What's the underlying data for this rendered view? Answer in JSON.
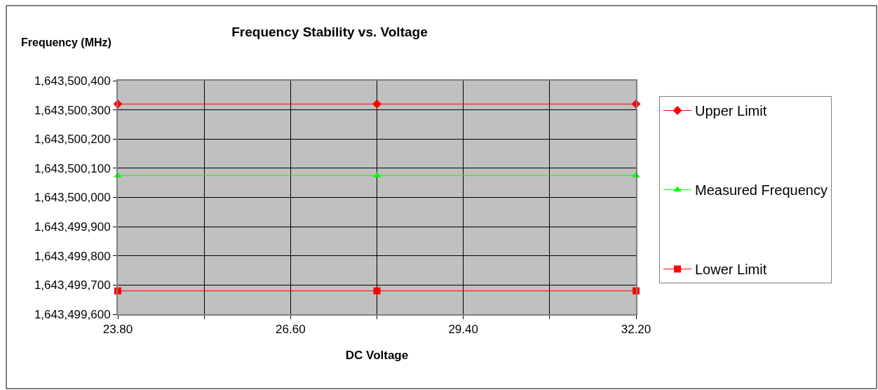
{
  "chart_data": {
    "type": "line",
    "title": "Frequency Stability vs. Voltage",
    "xlabel": "DC Voltage",
    "ylabel": "Frequency (MHz)",
    "x": [
      23.8,
      28.0,
      32.2
    ],
    "series": [
      {
        "name": "Upper Limit",
        "color": "#ff0000",
        "marker": "diamond",
        "values": [
          1643500320,
          1643500320,
          1643500320
        ]
      },
      {
        "name": "Measured Frequency",
        "color": "#00ff00",
        "marker": "triangle",
        "values": [
          1643500075,
          1643500075,
          1643500075
        ]
      },
      {
        "name": "Lower Limit",
        "color": "#ff0000",
        "marker": "square",
        "values": [
          1643499680,
          1643499680,
          1643499680
        ]
      }
    ],
    "xlim": [
      23.8,
      32.2
    ],
    "xticks": [
      {
        "value": 23.8,
        "label": "23.80"
      },
      {
        "value": 25.2,
        "label": null
      },
      {
        "value": 26.6,
        "label": "26.60"
      },
      {
        "value": 28.0,
        "label": null
      },
      {
        "value": 29.4,
        "label": "29.40"
      },
      {
        "value": 30.8,
        "label": null
      },
      {
        "value": 32.2,
        "label": "32.20"
      }
    ],
    "ylim": [
      1643499600,
      1643500400
    ],
    "yticks": [
      {
        "value": 1643499600,
        "label": "1,643,499,600"
      },
      {
        "value": 1643499700,
        "label": "1,643,499,700"
      },
      {
        "value": 1643499800,
        "label": "1,643,499,800"
      },
      {
        "value": 1643499900,
        "label": "1,643,499,900"
      },
      {
        "value": 1643500000,
        "label": "1,643,500,000"
      },
      {
        "value": 1643500100,
        "label": "1,643,500,100"
      },
      {
        "value": 1643500200,
        "label": "1,643,500,200"
      },
      {
        "value": 1643500300,
        "label": "1,643,500,300"
      },
      {
        "value": 1643500400,
        "label": "1,643,500,400"
      }
    ],
    "grid": true,
    "legend": "right",
    "line_style": "solid"
  }
}
